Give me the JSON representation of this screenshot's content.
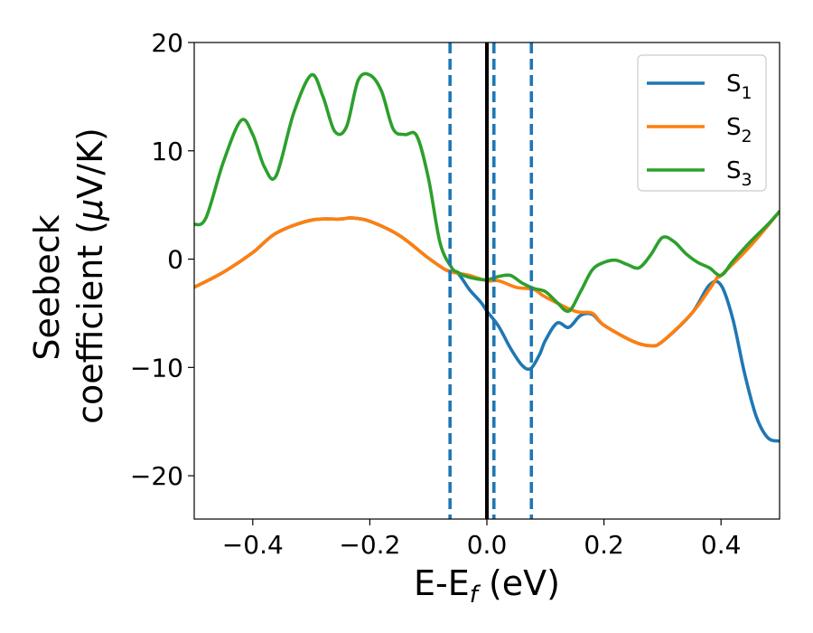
{
  "chart_data": {
    "type": "line",
    "xlabel": {
      "main": "E-E",
      "sub": "f",
      "unit": " (eV)"
    },
    "ylabel": {
      "line1": "Seebeck",
      "line2_prefix": "coefficient  (",
      "mu": "μ",
      "line2_suffix": "V/K)"
    },
    "xlim": [
      -0.5,
      0.5
    ],
    "ylim": [
      -24,
      20
    ],
    "xticks": [
      -0.4,
      -0.2,
      0.0,
      0.2,
      0.4
    ],
    "xtick_labels": [
      "−0.4",
      "−0.2",
      "0.0",
      "0.2",
      "0.4"
    ],
    "yticks": [
      -20,
      -10,
      0,
      10,
      20
    ],
    "ytick_labels": [
      "−20",
      "−10",
      "0",
      "10",
      "20"
    ],
    "grid": false,
    "legend_position": "top-right",
    "series": [
      {
        "name": "S",
        "name_sub": "1",
        "color": "#1f77b4",
        "x": [
          -0.5,
          -0.45,
          -0.4,
          -0.36,
          -0.3,
          -0.25,
          -0.23,
          -0.2,
          -0.15,
          -0.1,
          -0.07,
          -0.05,
          -0.03,
          -0.01,
          0.0,
          0.02,
          0.04,
          0.06,
          0.075,
          0.09,
          0.1,
          0.12,
          0.14,
          0.16,
          0.18,
          0.2,
          0.25,
          0.28,
          0.3,
          0.35,
          0.38,
          0.4,
          0.42,
          0.44,
          0.46,
          0.48,
          0.5
        ],
        "y": [
          -2.6,
          -1.2,
          0.6,
          2.4,
          3.6,
          3.7,
          3.8,
          3.5,
          2.2,
          0.1,
          -1.0,
          -1.3,
          -2.8,
          -4.0,
          -4.8,
          -6.2,
          -8.2,
          -9.8,
          -10.1,
          -8.8,
          -7.5,
          -5.9,
          -6.3,
          -5.2,
          -5.1,
          -6.1,
          -7.6,
          -8.0,
          -7.6,
          -5.0,
          -2.4,
          -2.4,
          -5.5,
          -10.5,
          -14.5,
          -16.5,
          -16.8
        ]
      },
      {
        "name": "S",
        "name_sub": "2",
        "color": "#ff7f0e",
        "x": [
          -0.5,
          -0.45,
          -0.4,
          -0.36,
          -0.3,
          -0.25,
          -0.23,
          -0.2,
          -0.15,
          -0.1,
          -0.07,
          -0.05,
          -0.03,
          0.0,
          0.02,
          0.05,
          0.08,
          0.1,
          0.15,
          0.18,
          0.2,
          0.25,
          0.28,
          0.3,
          0.35,
          0.38,
          0.395,
          0.4,
          0.45,
          0.5
        ],
        "y": [
          -2.6,
          -1.2,
          0.6,
          2.4,
          3.6,
          3.7,
          3.8,
          3.5,
          2.2,
          0.1,
          -1.0,
          -1.3,
          -1.5,
          -2.0,
          -2.0,
          -2.6,
          -2.8,
          -3.5,
          -4.8,
          -5.0,
          -6.1,
          -7.6,
          -8.0,
          -7.6,
          -5.0,
          -2.8,
          -1.6,
          -1.5,
          1.2,
          4.4
        ]
      },
      {
        "name": "S",
        "name_sub": "3",
        "color": "#2ca02c",
        "x": [
          -0.5,
          -0.48,
          -0.45,
          -0.42,
          -0.4,
          -0.38,
          -0.36,
          -0.33,
          -0.3,
          -0.28,
          -0.26,
          -0.24,
          -0.22,
          -0.2,
          -0.18,
          -0.16,
          -0.14,
          -0.12,
          -0.1,
          -0.08,
          -0.06,
          -0.05,
          -0.04,
          -0.02,
          0.0,
          0.02,
          0.04,
          0.06,
          0.08,
          0.1,
          0.12,
          0.14,
          0.16,
          0.18,
          0.2,
          0.22,
          0.24,
          0.26,
          0.28,
          0.3,
          0.32,
          0.34,
          0.36,
          0.38,
          0.4,
          0.42,
          0.45,
          0.48,
          0.5
        ],
        "y": [
          3.2,
          3.8,
          9.0,
          12.8,
          11.5,
          8.5,
          7.7,
          13.5,
          17.0,
          15.0,
          11.8,
          12.2,
          16.5,
          17.0,
          15.5,
          12.0,
          11.5,
          11.4,
          7.5,
          1.5,
          -0.8,
          -1.2,
          -1.5,
          -1.8,
          -1.9,
          -1.6,
          -1.5,
          -2.2,
          -2.7,
          -3.0,
          -4.0,
          -4.8,
          -3.0,
          -1.0,
          -0.3,
          -0.1,
          -0.5,
          -0.8,
          0.4,
          2.0,
          1.6,
          0.5,
          -0.3,
          -0.8,
          -1.5,
          -0.2,
          1.6,
          3.2,
          4.4
        ]
      }
    ],
    "reference_lines": [
      {
        "x": -0.063,
        "style": "dashed",
        "color": "#1f77b4"
      },
      {
        "x": 0.0,
        "style": "solid",
        "color": "#000000"
      },
      {
        "x": 0.012,
        "style": "dashed",
        "color": "#1f77b4"
      },
      {
        "x": 0.076,
        "style": "dashed",
        "color": "#1f77b4"
      }
    ]
  }
}
